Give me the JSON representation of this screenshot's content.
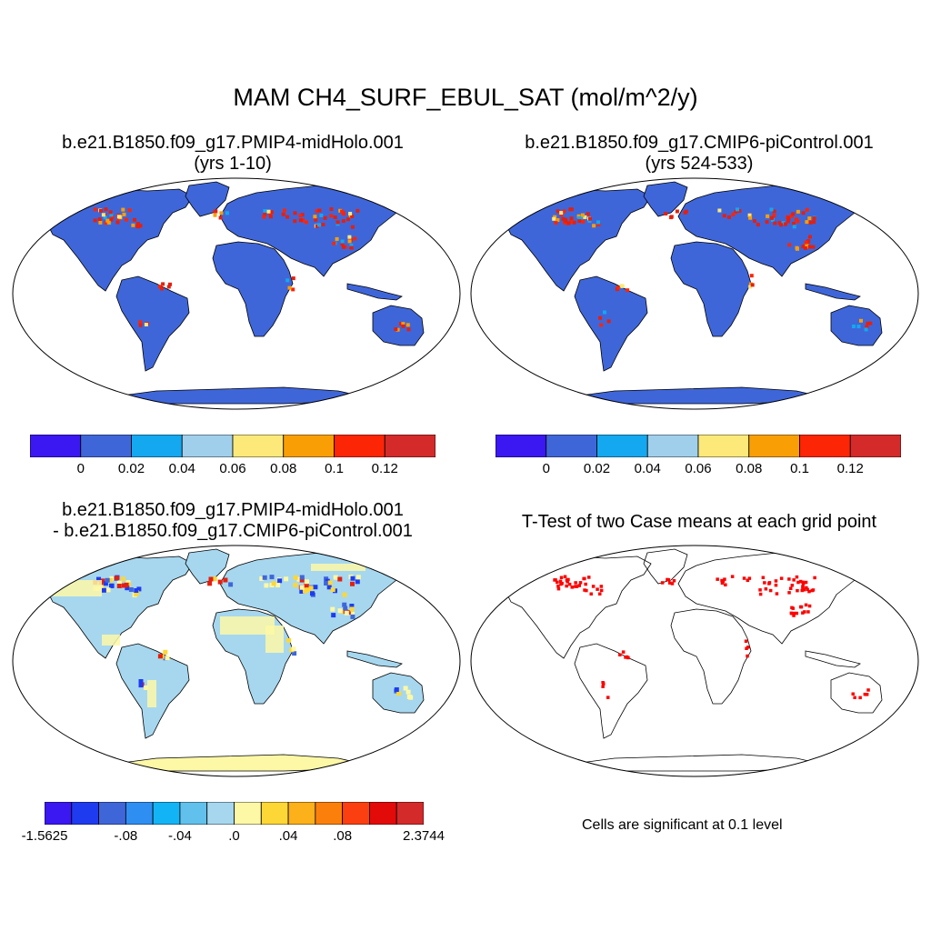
{
  "figure": {
    "title": "MAM CH4_SURF_EBUL_SAT (mol/m^2/y)"
  },
  "panels": {
    "top_left": {
      "title_line1": "b.e21.B1850.f09_g17.PMIP4-midHolo.001",
      "title_line2": "(yrs 1-10)"
    },
    "top_right": {
      "title_line1": "b.e21.B1850.f09_g17.CMIP6-piControl.001",
      "title_line2": "(yrs 524-533)"
    },
    "bottom_left": {
      "title_line1": "b.e21.B1850.f09_g17.PMIP4-midHolo.001",
      "title_line2": "- b.e21.B1850.f09_g17.CMIP6-piControl.001"
    },
    "bottom_right": {
      "title_line1": "T-Test of two Case means at each grid point",
      "note": "Cells are significant at 0.1 level"
    }
  },
  "colorbars": {
    "case": {
      "colors": [
        "#3b17f2",
        "#3f66d9",
        "#13a8f0",
        "#a0cfeb",
        "#fce97a",
        "#fa9e05",
        "#fc2506",
        "#d42a2a"
      ],
      "labels": [
        "0",
        "0.02",
        "0.04",
        "0.06",
        "0.08",
        "0.1",
        "0.12"
      ]
    },
    "diff": {
      "colors": [
        "#3b17f2",
        "#1f3bf0",
        "#3f66d9",
        "#2f8ef2",
        "#13b4f5",
        "#62c0ec",
        "#a6d7ef",
        "#fdf8a6",
        "#fdd736",
        "#fcb019",
        "#fb800b",
        "#fc3f10",
        "#e30a0a",
        "#d42a2a"
      ],
      "labels": [
        "-1.5625",
        "-.08",
        "-.04",
        ".0",
        ".04",
        ".08",
        "2.3744"
      ]
    }
  },
  "map_colors": {
    "land_case": "#3f66d9",
    "hot": "#e32010",
    "hot2": "#fc2506",
    "warm": "#fa9e05",
    "yellow": "#fce97a",
    "cyan": "#13a8f0",
    "diff_land": "#a6d7ef",
    "diff_yellow": "#fdf8a6",
    "signif": "#ff0000",
    "coast": "#000000"
  }
}
